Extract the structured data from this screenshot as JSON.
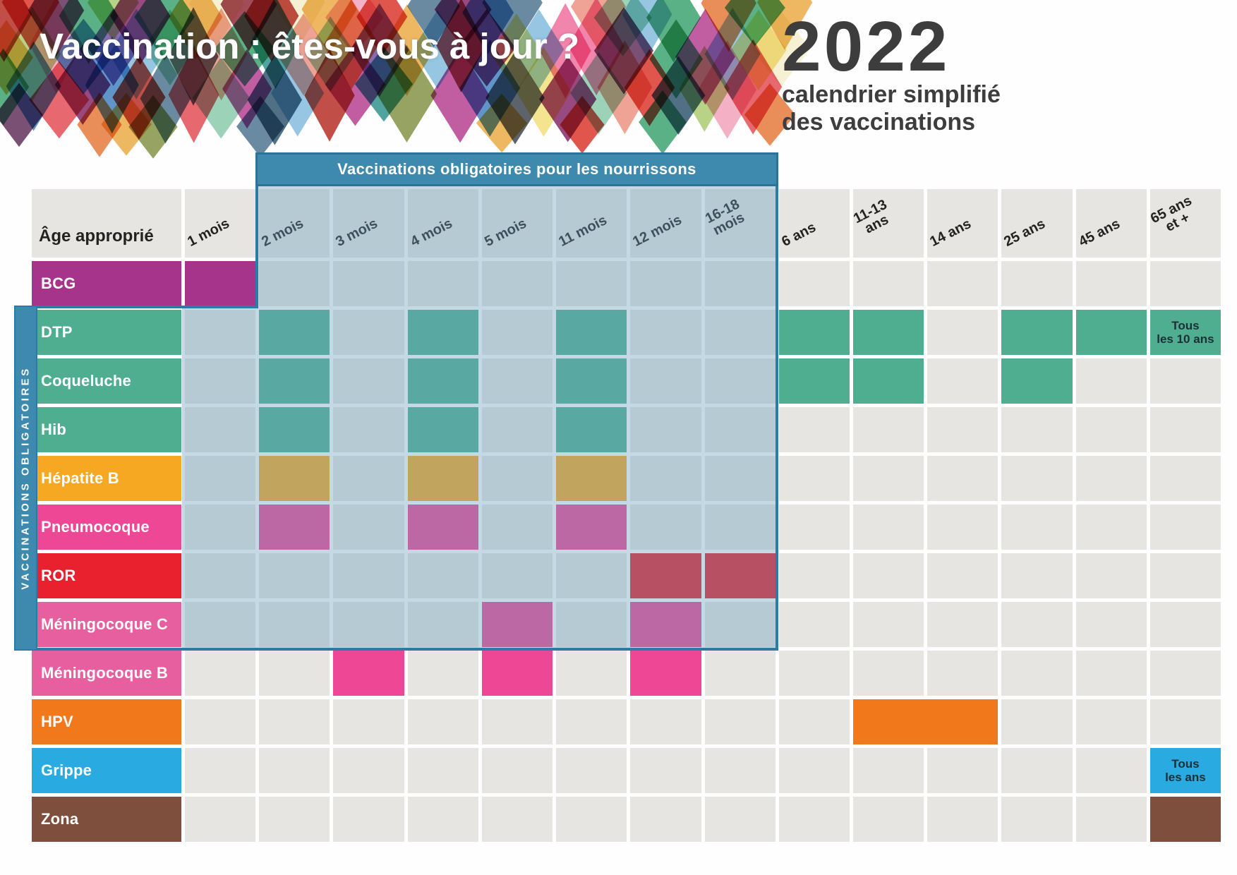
{
  "banner": {
    "title": "Vaccination : êtes-vous à jour ?",
    "palette": [
      "#d93025",
      "#b3261e",
      "#e2474f",
      "#ef6a9a",
      "#f2a0b8",
      "#b23a8c",
      "#812062",
      "#5d2a55",
      "#6f4aa0",
      "#2a8f8a",
      "#35a06a",
      "#a9c86b",
      "#7f8f3f",
      "#f2dd76",
      "#f6eecb",
      "#eaa83f",
      "#e57434",
      "#3d7dbf",
      "#49708c",
      "#29506b",
      "#394049",
      "#8c2433",
      "#ea8f7e",
      "#86c9a8",
      "#7fb9dc",
      "#b98cb8"
    ]
  },
  "year_block": {
    "year": "2022",
    "subtitle_line1": "calendrier simplifié",
    "subtitle_line2": "des vaccinations"
  },
  "overlay": {
    "title": "Vaccinations obligatoires pour les nourrissons",
    "side_label": "VACCINATIONS OBLIGATOIRES",
    "bar_color": "#3e89ae",
    "border_color": "#2c7ba6"
  },
  "table": {
    "corner_label": "Âge approprié",
    "columns": [
      "1 mois",
      "2 mois",
      "3 mois",
      "4 mois",
      "5 mois",
      "11 mois",
      "12 mois",
      "16-18\nmois",
      "6 ans",
      "11-13\nans",
      "14 ans",
      "25 ans",
      "45 ans",
      "65 ans\net +"
    ],
    "colors": {
      "magenta": "#a5348a",
      "green": "#4fae90",
      "amber": "#f7a823",
      "pink": "#ee4796",
      "pink_light": "#e75f9f",
      "red": "#e9212e",
      "orange": "#f2791b",
      "blue": "#29abe2",
      "brown": "#7f4f3d",
      "empty": "#e6e5e1"
    },
    "rows": [
      {
        "label": "BCG",
        "color": "magenta",
        "cells": [
          {
            "col": 0,
            "color": "magenta"
          }
        ]
      },
      {
        "label": "DTP",
        "color": "green",
        "cells": [
          {
            "col": 1,
            "color": "green"
          },
          {
            "col": 3,
            "color": "green"
          },
          {
            "col": 5,
            "color": "green"
          },
          {
            "col": 8,
            "color": "green"
          },
          {
            "col": 9,
            "color": "green"
          },
          {
            "col": 11,
            "color": "green"
          },
          {
            "col": 12,
            "color": "green"
          },
          {
            "col": 13,
            "color": "green",
            "text": "Tous\nles 10 ans"
          }
        ]
      },
      {
        "label": "Coqueluche",
        "color": "green",
        "cells": [
          {
            "col": 1,
            "color": "green"
          },
          {
            "col": 3,
            "color": "green"
          },
          {
            "col": 5,
            "color": "green"
          },
          {
            "col": 8,
            "color": "green"
          },
          {
            "col": 9,
            "color": "green"
          },
          {
            "col": 11,
            "color": "green"
          }
        ]
      },
      {
        "label": "Hib",
        "color": "green",
        "cells": [
          {
            "col": 1,
            "color": "green"
          },
          {
            "col": 3,
            "color": "green"
          },
          {
            "col": 5,
            "color": "green"
          }
        ]
      },
      {
        "label": "Hépatite B",
        "color": "amber",
        "cells": [
          {
            "col": 1,
            "color": "amber"
          },
          {
            "col": 3,
            "color": "amber"
          },
          {
            "col": 5,
            "color": "amber"
          }
        ]
      },
      {
        "label": "Pneumocoque",
        "color": "pink",
        "cells": [
          {
            "col": 1,
            "color": "pink"
          },
          {
            "col": 3,
            "color": "pink"
          },
          {
            "col": 5,
            "color": "pink"
          }
        ]
      },
      {
        "label": "ROR",
        "color": "red",
        "cells": [
          {
            "col": 6,
            "color": "red"
          },
          {
            "col": 7,
            "color": "red"
          }
        ]
      },
      {
        "label": "Méningocoque C",
        "color": "pink_light",
        "cells": [
          {
            "col": 4,
            "color": "pink"
          },
          {
            "col": 6,
            "color": "pink"
          }
        ]
      },
      {
        "label": "Méningocoque B",
        "color": "pink_light",
        "cells": [
          {
            "col": 2,
            "color": "pink"
          },
          {
            "col": 4,
            "color": "pink"
          },
          {
            "col": 6,
            "color": "pink"
          }
        ]
      },
      {
        "label": "HPV",
        "color": "orange",
        "cells": [
          {
            "col": 9,
            "span": 2,
            "color": "orange"
          }
        ]
      },
      {
        "label": "Grippe",
        "color": "blue",
        "cells": [
          {
            "col": 13,
            "color": "blue",
            "text": "Tous\nles ans"
          }
        ]
      },
      {
        "label": "Zona",
        "color": "brown",
        "cells": [
          {
            "col": 13,
            "color": "brown"
          }
        ]
      }
    ]
  }
}
